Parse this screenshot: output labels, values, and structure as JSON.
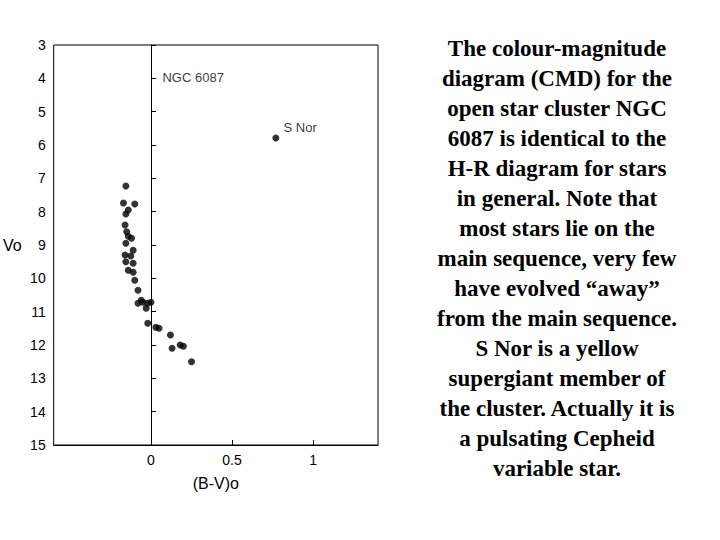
{
  "chart_data": {
    "type": "scatter",
    "x_label": "(B-V)o",
    "y_label": "Vo",
    "x": [
      -0.155,
      -0.17,
      -0.1,
      -0.14,
      -0.155,
      -0.16,
      -0.15,
      -0.14,
      -0.12,
      -0.155,
      -0.11,
      -0.16,
      -0.125,
      -0.155,
      -0.11,
      -0.14,
      -0.11,
      -0.1,
      -0.08,
      -0.06,
      -0.08,
      -0.05,
      -0.02,
      -0.03,
      0.0,
      -0.02,
      0.03,
      0.05,
      0.12,
      0.13,
      0.18,
      0.2,
      0.25,
      0.77
    ],
    "values": [
      7.23,
      7.74,
      7.77,
      7.95,
      8.07,
      8.4,
      8.6,
      8.74,
      8.8,
      8.95,
      9.16,
      9.3,
      9.33,
      9.5,
      9.55,
      9.76,
      9.82,
      10.06,
      10.36,
      10.66,
      10.75,
      10.72,
      10.75,
      10.9,
      10.72,
      11.35,
      11.47,
      11.5,
      11.7,
      12.1,
      12.0,
      12.04,
      12.5,
      5.79
    ],
    "color": "#000000",
    "marker": "circle",
    "xlim": [
      -0.6,
      1.4
    ],
    "xticks": [
      0,
      0.5,
      1
    ],
    "ylim": [
      3,
      15
    ],
    "yticks": [
      3,
      4,
      5,
      6,
      7,
      8,
      9,
      10,
      11,
      12,
      13,
      14,
      15
    ],
    "y_inverted": true,
    "grid": false,
    "annotations": [
      {
        "text": "NGC 6087",
        "x": 0.26,
        "y": 3.96
      },
      {
        "text": "S Nor",
        "x": 0.92,
        "y": 5.46
      }
    ],
    "caption_lines": [
      "The colour-magnitude",
      "diagram (CMD) for the",
      "open star cluster NGC",
      "6087 is identical to the",
      "H-R diagram for stars",
      "in general. Note that",
      "most stars lie on the",
      "main sequence, very few",
      "have evolved “away”",
      "from the main sequence.",
      "S Nor is a yellow",
      "supergiant member of",
      "the cluster. Actually it is",
      "a pulsating Cepheid",
      "variable star."
    ]
  }
}
